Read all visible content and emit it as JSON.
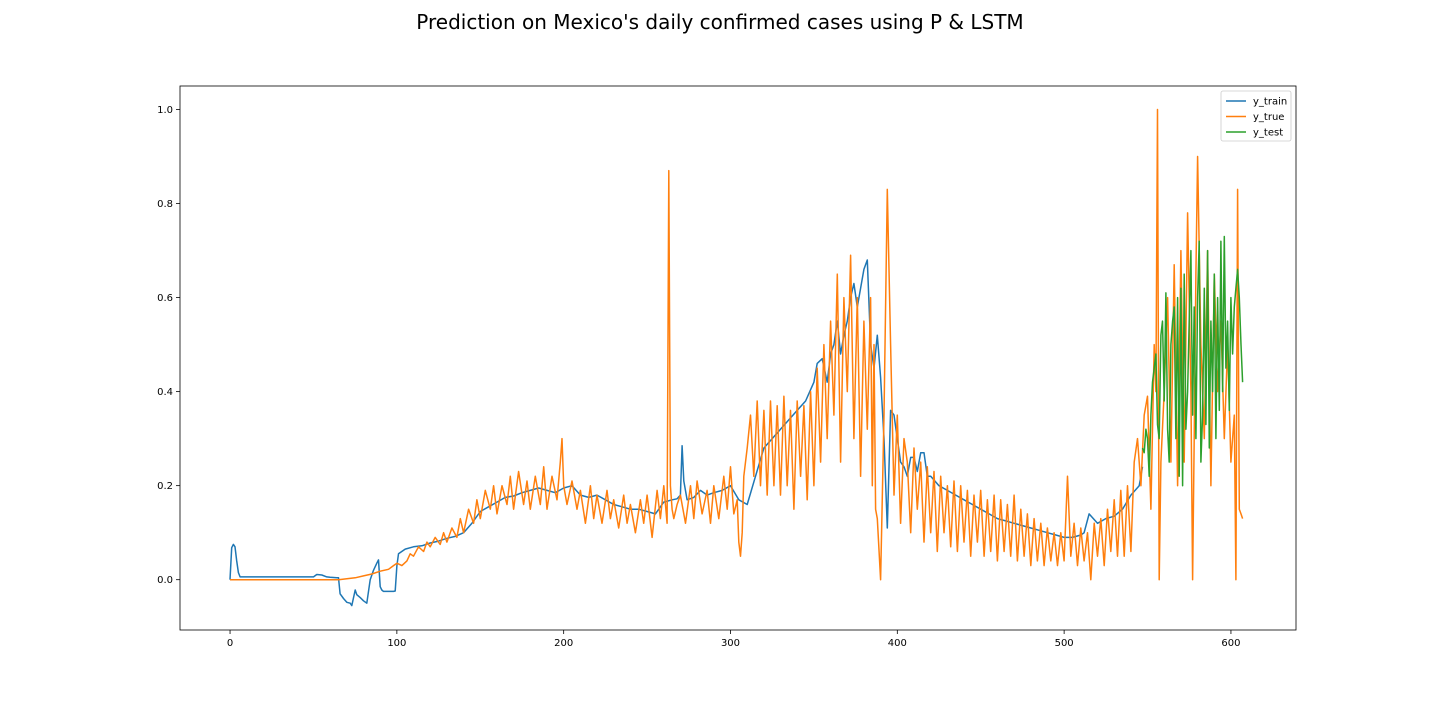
{
  "chart_data": {
    "type": "line",
    "title": "Prediction on Mexico's daily confirmed cases using P & LSTM",
    "xlabel": "",
    "ylabel": "",
    "xlim": [
      -30,
      639
    ],
    "ylim": [
      -0.107,
      1.05
    ],
    "xticks": [
      0,
      100,
      200,
      300,
      400,
      500,
      600
    ],
    "yticks": [
      0.0,
      0.2,
      0.4,
      0.6,
      0.8,
      1.0
    ],
    "xtick_labels": [
      "0",
      "100",
      "200",
      "300",
      "400",
      "500",
      "600"
    ],
    "ytick_labels": [
      "0.0",
      "0.2",
      "0.4",
      "0.6",
      "0.8",
      "1.0"
    ],
    "grid": false,
    "legend_position": "top-right",
    "series": [
      {
        "name": "y_train",
        "color": "#1f77b4",
        "x": [
          0,
          1,
          2,
          3,
          4,
          5,
          6,
          10,
          20,
          30,
          40,
          50,
          52,
          55,
          58,
          60,
          64,
          65,
          66,
          68,
          70,
          72,
          73,
          75,
          76,
          78,
          80,
          82,
          84,
          86,
          88,
          89,
          90,
          91,
          92,
          95,
          98,
          99,
          100,
          101,
          105,
          110,
          115,
          120,
          125,
          130,
          135,
          140,
          145,
          150,
          155,
          160,
          165,
          170,
          175,
          180,
          185,
          190,
          195,
          200,
          205,
          210,
          215,
          220,
          225,
          230,
          235,
          240,
          245,
          250,
          255,
          260,
          265,
          268,
          270,
          271,
          272,
          274,
          278,
          282,
          286,
          290,
          295,
          300,
          305,
          310,
          315,
          320,
          325,
          330,
          335,
          340,
          345,
          350,
          352,
          355,
          358,
          360,
          362,
          364,
          366,
          368,
          370,
          372,
          374,
          376,
          378,
          380,
          382,
          384,
          386,
          388,
          390,
          392,
          394,
          396,
          398,
          400,
          402,
          404,
          406,
          408,
          410,
          412,
          414,
          416,
          418,
          420,
          425,
          430,
          435,
          440,
          445,
          450,
          455,
          460,
          465,
          470,
          475,
          480,
          485,
          490,
          495,
          500,
          505,
          510,
          512,
          515,
          520,
          525,
          530,
          535,
          540,
          545,
          547
        ],
        "y": [
          0.0,
          0.068,
          0.075,
          0.07,
          0.04,
          0.015,
          0.006,
          0.006,
          0.006,
          0.006,
          0.006,
          0.006,
          0.011,
          0.01,
          0.006,
          0.005,
          0.004,
          0.004,
          -0.03,
          -0.04,
          -0.048,
          -0.05,
          -0.055,
          -0.022,
          -0.032,
          -0.038,
          -0.045,
          -0.05,
          0.0,
          0.02,
          0.035,
          0.042,
          -0.015,
          -0.022,
          -0.025,
          -0.025,
          -0.025,
          -0.024,
          0.03,
          0.055,
          0.065,
          0.07,
          0.072,
          0.078,
          0.082,
          0.088,
          0.092,
          0.1,
          0.12,
          0.145,
          0.155,
          0.165,
          0.175,
          0.178,
          0.185,
          0.19,
          0.195,
          0.19,
          0.185,
          0.195,
          0.2,
          0.18,
          0.175,
          0.18,
          0.17,
          0.16,
          0.155,
          0.15,
          0.15,
          0.145,
          0.14,
          0.165,
          0.17,
          0.172,
          0.18,
          0.285,
          0.21,
          0.17,
          0.175,
          0.19,
          0.18,
          0.185,
          0.19,
          0.2,
          0.17,
          0.16,
          0.22,
          0.28,
          0.3,
          0.32,
          0.34,
          0.36,
          0.38,
          0.42,
          0.46,
          0.47,
          0.42,
          0.48,
          0.5,
          0.55,
          0.48,
          0.52,
          0.55,
          0.6,
          0.63,
          0.58,
          0.62,
          0.66,
          0.68,
          0.5,
          0.45,
          0.52,
          0.43,
          0.3,
          0.11,
          0.36,
          0.35,
          0.3,
          0.25,
          0.24,
          0.22,
          0.26,
          0.26,
          0.23,
          0.27,
          0.27,
          0.22,
          0.22,
          0.2,
          0.19,
          0.18,
          0.17,
          0.16,
          0.15,
          0.14,
          0.13,
          0.125,
          0.12,
          0.115,
          0.11,
          0.105,
          0.1,
          0.095,
          0.09,
          0.09,
          0.095,
          0.1,
          0.14,
          0.12,
          0.13,
          0.135,
          0.15,
          0.18,
          0.2,
          0.24
        ]
      },
      {
        "name": "y_true",
        "color": "#ff7f0e",
        "x": [
          0,
          10,
          20,
          30,
          40,
          50,
          60,
          65,
          70,
          75,
          80,
          85,
          90,
          95,
          98,
          100,
          103,
          106,
          108,
          110,
          113,
          116,
          118,
          120,
          123,
          126,
          128,
          130,
          133,
          136,
          138,
          140,
          143,
          146,
          148,
          150,
          153,
          156,
          158,
          160,
          163,
          166,
          168,
          170,
          173,
          176,
          178,
          180,
          183,
          186,
          188,
          190,
          193,
          196,
          198,
          199,
          200,
          202,
          205,
          208,
          210,
          213,
          216,
          218,
          220,
          223,
          226,
          228,
          230,
          233,
          236,
          238,
          240,
          243,
          246,
          248,
          250,
          253,
          256,
          258,
          260,
          262,
          263,
          264,
          265,
          266,
          268,
          270,
          273,
          276,
          278,
          280,
          283,
          286,
          288,
          290,
          293,
          296,
          298,
          300,
          302,
          304,
          305,
          306,
          307,
          308,
          310,
          312,
          314,
          316,
          318,
          320,
          322,
          324,
          326,
          328,
          330,
          332,
          334,
          336,
          338,
          340,
          342,
          344,
          346,
          348,
          350,
          352,
          354,
          356,
          358,
          360,
          362,
          364,
          366,
          368,
          370,
          372,
          374,
          376,
          378,
          380,
          382,
          384,
          385,
          386,
          387,
          388,
          390,
          392,
          394,
          396,
          398,
          400,
          402,
          404,
          406,
          408,
          410,
          412,
          414,
          416,
          418,
          420,
          422,
          424,
          426,
          428,
          430,
          432,
          434,
          436,
          438,
          440,
          442,
          444,
          446,
          448,
          450,
          452,
          454,
          456,
          458,
          460,
          462,
          464,
          466,
          468,
          470,
          472,
          474,
          476,
          478,
          480,
          482,
          484,
          486,
          488,
          490,
          492,
          494,
          496,
          498,
          500,
          502,
          504,
          506,
          508,
          510,
          512,
          514,
          516,
          518,
          520,
          522,
          524,
          526,
          528,
          530,
          532,
          534,
          536,
          538,
          540,
          542,
          544,
          546,
          548,
          550,
          552,
          554,
          555,
          556,
          557,
          558,
          560,
          562,
          564,
          566,
          568,
          570,
          572,
          574,
          576,
          577,
          578,
          579,
          580,
          582,
          584,
          586,
          588,
          590,
          592,
          594,
          596,
          598,
          600,
          602,
          603,
          604,
          605,
          606,
          607
        ],
        "y": [
          0.0,
          0.0,
          0.0,
          0.0,
          0.0,
          0.0,
          0.0,
          0.0,
          0.002,
          0.004,
          0.008,
          0.012,
          0.018,
          0.022,
          0.03,
          0.035,
          0.03,
          0.04,
          0.055,
          0.05,
          0.07,
          0.06,
          0.08,
          0.07,
          0.09,
          0.075,
          0.1,
          0.08,
          0.11,
          0.09,
          0.13,
          0.1,
          0.15,
          0.12,
          0.17,
          0.13,
          0.19,
          0.15,
          0.2,
          0.14,
          0.2,
          0.16,
          0.22,
          0.15,
          0.23,
          0.16,
          0.21,
          0.15,
          0.22,
          0.16,
          0.24,
          0.15,
          0.22,
          0.17,
          0.25,
          0.3,
          0.2,
          0.16,
          0.21,
          0.15,
          0.19,
          0.12,
          0.2,
          0.13,
          0.18,
          0.12,
          0.19,
          0.13,
          0.17,
          0.11,
          0.18,
          0.12,
          0.16,
          0.1,
          0.17,
          0.12,
          0.18,
          0.09,
          0.19,
          0.13,
          0.2,
          0.12,
          0.87,
          0.2,
          0.15,
          0.13,
          0.16,
          0.18,
          0.12,
          0.2,
          0.13,
          0.21,
          0.14,
          0.19,
          0.12,
          0.2,
          0.13,
          0.22,
          0.15,
          0.24,
          0.14,
          0.17,
          0.08,
          0.05,
          0.1,
          0.22,
          0.28,
          0.35,
          0.22,
          0.38,
          0.2,
          0.36,
          0.18,
          0.38,
          0.2,
          0.37,
          0.18,
          0.39,
          0.2,
          0.36,
          0.15,
          0.38,
          0.22,
          0.37,
          0.17,
          0.4,
          0.2,
          0.45,
          0.25,
          0.5,
          0.3,
          0.55,
          0.35,
          0.65,
          0.25,
          0.6,
          0.4,
          0.69,
          0.3,
          0.6,
          0.22,
          0.55,
          0.32,
          0.6,
          0.2,
          0.5,
          0.15,
          0.13,
          0.0,
          0.35,
          0.83,
          0.5,
          0.18,
          0.35,
          0.12,
          0.3,
          0.25,
          0.1,
          0.28,
          0.15,
          0.25,
          0.08,
          0.24,
          0.1,
          0.23,
          0.06,
          0.22,
          0.1,
          0.2,
          0.07,
          0.21,
          0.06,
          0.2,
          0.08,
          0.19,
          0.05,
          0.18,
          0.08,
          0.19,
          0.05,
          0.17,
          0.06,
          0.18,
          0.04,
          0.17,
          0.06,
          0.16,
          0.05,
          0.18,
          0.04,
          0.15,
          0.05,
          0.14,
          0.03,
          0.13,
          0.04,
          0.12,
          0.03,
          0.11,
          0.04,
          0.1,
          0.03,
          0.1,
          0.04,
          0.22,
          0.05,
          0.12,
          0.03,
          0.11,
          0.04,
          0.1,
          0.0,
          0.12,
          0.05,
          0.13,
          0.03,
          0.15,
          0.06,
          0.17,
          0.05,
          0.19,
          0.05,
          0.2,
          0.06,
          0.25,
          0.3,
          0.2,
          0.35,
          0.39,
          0.15,
          0.5,
          0.4,
          1.0,
          0.0,
          0.25,
          0.4,
          0.6,
          0.25,
          0.67,
          0.2,
          0.7,
          0.25,
          0.78,
          0.4,
          0.0,
          0.3,
          0.65,
          0.9,
          0.5,
          0.3,
          0.7,
          0.2,
          0.65,
          0.4,
          0.55,
          0.3,
          0.5,
          0.25,
          0.35,
          0.0,
          0.83,
          0.15,
          0.14,
          0.13
        ]
      },
      {
        "name": "y_test",
        "color": "#2ca02c",
        "x": [
          547,
          548,
          549,
          550,
          551,
          552,
          553,
          554,
          555,
          556,
          557,
          558,
          559,
          560,
          561,
          562,
          563,
          564,
          565,
          566,
          567,
          568,
          569,
          570,
          571,
          572,
          573,
          574,
          575,
          576,
          577,
          578,
          579,
          580,
          581,
          582,
          583,
          584,
          585,
          586,
          587,
          588,
          589,
          590,
          591,
          592,
          593,
          594,
          595,
          596,
          597,
          598,
          599,
          600,
          601,
          602,
          603,
          604,
          605,
          606,
          607
        ],
        "y": [
          0.28,
          0.27,
          0.32,
          0.3,
          0.22,
          0.35,
          0.42,
          0.45,
          0.48,
          0.33,
          0.3,
          0.52,
          0.55,
          0.38,
          0.61,
          0.32,
          0.25,
          0.5,
          0.55,
          0.58,
          0.3,
          0.6,
          0.22,
          0.62,
          0.2,
          0.65,
          0.32,
          0.4,
          0.55,
          0.7,
          0.35,
          0.58,
          0.3,
          0.6,
          0.72,
          0.25,
          0.35,
          0.62,
          0.33,
          0.7,
          0.28,
          0.55,
          0.4,
          0.65,
          0.3,
          0.6,
          0.36,
          0.72,
          0.4,
          0.73,
          0.45,
          0.55,
          0.36,
          0.6,
          0.48,
          0.58,
          0.62,
          0.66,
          0.6,
          0.5,
          0.42
        ]
      }
    ]
  }
}
